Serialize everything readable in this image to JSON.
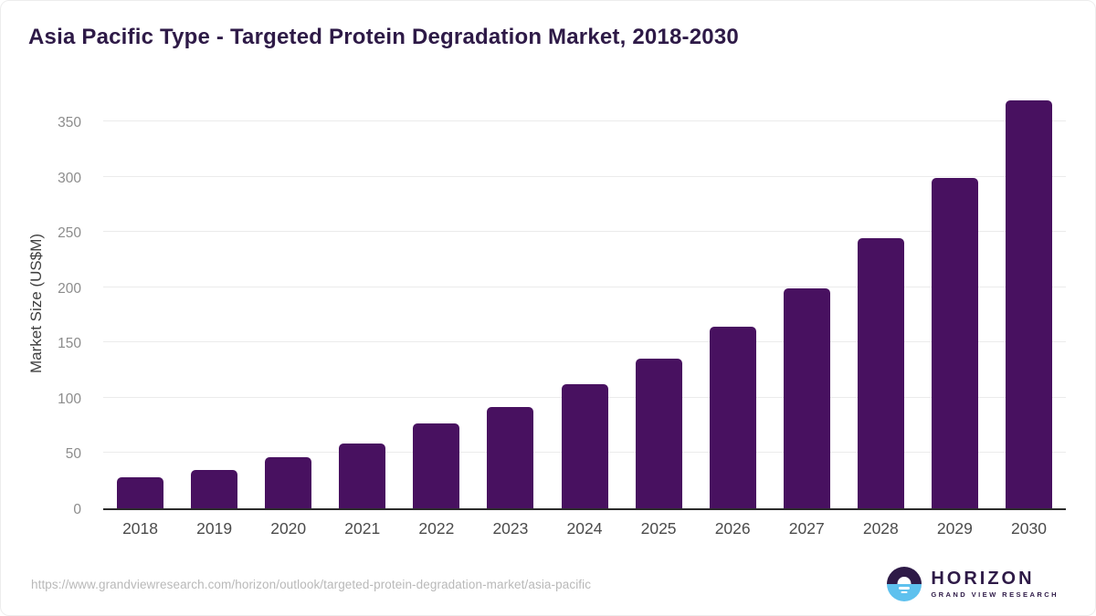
{
  "title": "Asia Pacific Type - Targeted Protein Degradation Market, 2018-2030",
  "chart_data": {
    "type": "bar",
    "title": "Asia Pacific Type - Targeted Protein Degradation Market, 2018-2030",
    "categories": [
      "2018",
      "2019",
      "2020",
      "2021",
      "2022",
      "2023",
      "2024",
      "2025",
      "2026",
      "2027",
      "2028",
      "2029",
      "2030"
    ],
    "values": [
      28,
      35,
      46,
      59,
      77,
      92,
      112,
      135,
      164,
      199,
      244,
      299,
      369
    ],
    "xlabel": "",
    "ylabel": "Market Size (US$M)",
    "yticks": [
      0,
      50,
      100,
      150,
      200,
      250,
      300,
      350
    ],
    "ylim": [
      0,
      374
    ],
    "grid": "horizontal-light",
    "legend": "none",
    "bar_color": "#481160"
  },
  "footer": {
    "source_url": "https://www.grandviewresearch.com/horizon/outlook/targeted-protein-degradation-market/asia-pacific",
    "logo": {
      "name": "HORIZON",
      "subtitle": "GRAND VIEW RESEARCH",
      "mark": "sunset-over-water-icon",
      "mark_top_color": "#2e1a47",
      "mark_bottom_color": "#5ec1ee"
    }
  },
  "colors": {
    "title_text": "#2e1a47",
    "bar": "#481160",
    "axis_line": "#2b2b2b",
    "gridline": "#ebebeb",
    "tick_label": "#8c8c8c",
    "axis_label": "#3f3f3f",
    "x_label": "#4b4b4b",
    "url_text": "#b9b9b9",
    "background": "#ffffff"
  }
}
